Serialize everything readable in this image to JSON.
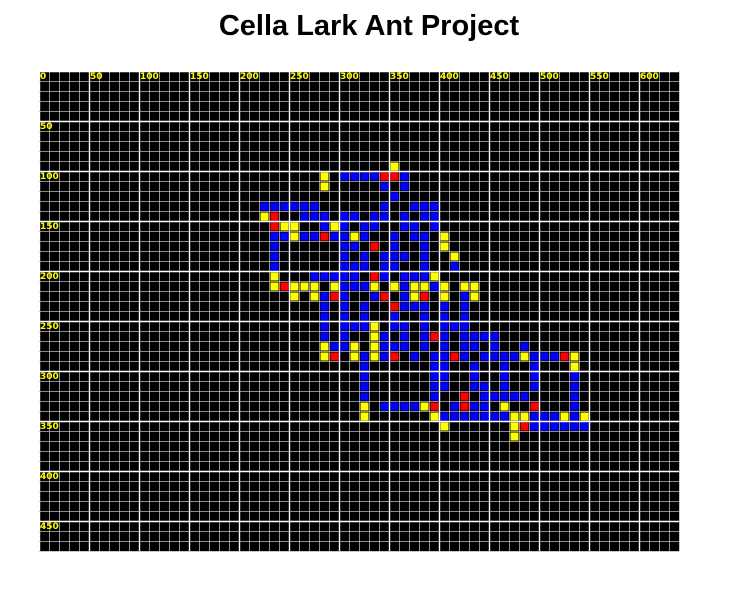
{
  "title": "Cella Lark Ant Project",
  "grid": {
    "x_range": [
      0,
      640
    ],
    "y_range": [
      0,
      480
    ],
    "cell_size": 10,
    "x_ticks": [
      "0",
      "50",
      "100",
      "150",
      "200",
      "250",
      "300",
      "350",
      "400",
      "450",
      "500",
      "550",
      "600"
    ],
    "y_ticks": [
      "0",
      "50",
      "100",
      "150",
      "200",
      "250",
      "300",
      "350",
      "400",
      "450"
    ]
  },
  "colors": {
    "background": "#000000",
    "grid_minor": "#b8b8b8",
    "grid_major": "#ffffff",
    "tick_label": "#ffff00",
    "blue": "#0000ff",
    "yellow": "#ffff00",
    "red": "#ff0000"
  },
  "cells": {
    "blue": [
      [
        30,
        10
      ],
      [
        31,
        10
      ],
      [
        32,
        10
      ],
      [
        33,
        10
      ],
      [
        36,
        10
      ],
      [
        34,
        11
      ],
      [
        36,
        11
      ],
      [
        35,
        12
      ],
      [
        22,
        13
      ],
      [
        23,
        13
      ],
      [
        24,
        13
      ],
      [
        25,
        13
      ],
      [
        26,
        13
      ],
      [
        27,
        13
      ],
      [
        34,
        13
      ],
      [
        37,
        13
      ],
      [
        38,
        13
      ],
      [
        39,
        13
      ],
      [
        26,
        14
      ],
      [
        27,
        14
      ],
      [
        28,
        14
      ],
      [
        30,
        14
      ],
      [
        31,
        14
      ],
      [
        33,
        14
      ],
      [
        34,
        14
      ],
      [
        36,
        14
      ],
      [
        38,
        14
      ],
      [
        39,
        14
      ],
      [
        23,
        15
      ],
      [
        24,
        15
      ],
      [
        28,
        15
      ],
      [
        30,
        15
      ],
      [
        32,
        15
      ],
      [
        33,
        15
      ],
      [
        36,
        15
      ],
      [
        37,
        15
      ],
      [
        39,
        15
      ],
      [
        23,
        16
      ],
      [
        24,
        16
      ],
      [
        26,
        16
      ],
      [
        27,
        16
      ],
      [
        29,
        16
      ],
      [
        30,
        16
      ],
      [
        32,
        16
      ],
      [
        35,
        16
      ],
      [
        37,
        16
      ],
      [
        38,
        16
      ],
      [
        23,
        17
      ],
      [
        30,
        17
      ],
      [
        31,
        17
      ],
      [
        33,
        17
      ],
      [
        35,
        17
      ],
      [
        38,
        17
      ],
      [
        23,
        18
      ],
      [
        30,
        18
      ],
      [
        32,
        18
      ],
      [
        34,
        18
      ],
      [
        35,
        18
      ],
      [
        36,
        18
      ],
      [
        38,
        18
      ],
      [
        23,
        19
      ],
      [
        30,
        19
      ],
      [
        31,
        19
      ],
      [
        32,
        19
      ],
      [
        34,
        19
      ],
      [
        35,
        19
      ],
      [
        38,
        19
      ],
      [
        41,
        19
      ],
      [
        27,
        20
      ],
      [
        28,
        20
      ],
      [
        29,
        20
      ],
      [
        30,
        20
      ],
      [
        31,
        20
      ],
      [
        33,
        20
      ],
      [
        34,
        20
      ],
      [
        36,
        20
      ],
      [
        37,
        20
      ],
      [
        38,
        20
      ],
      [
        30,
        21
      ],
      [
        31,
        21
      ],
      [
        32,
        21
      ],
      [
        36,
        21
      ],
      [
        39,
        21
      ],
      [
        28,
        22
      ],
      [
        30,
        22
      ],
      [
        33,
        22
      ],
      [
        34,
        22
      ],
      [
        36,
        22
      ],
      [
        38,
        22
      ],
      [
        42,
        22
      ],
      [
        28,
        23
      ],
      [
        30,
        23
      ],
      [
        32,
        23
      ],
      [
        35,
        23
      ],
      [
        36,
        23
      ],
      [
        37,
        23
      ],
      [
        38,
        23
      ],
      [
        40,
        23
      ],
      [
        42,
        23
      ],
      [
        28,
        24
      ],
      [
        30,
        24
      ],
      [
        32,
        24
      ],
      [
        35,
        24
      ],
      [
        38,
        24
      ],
      [
        40,
        24
      ],
      [
        42,
        24
      ],
      [
        28,
        25
      ],
      [
        30,
        25
      ],
      [
        31,
        25
      ],
      [
        32,
        25
      ],
      [
        33,
        25
      ],
      [
        35,
        25
      ],
      [
        36,
        25
      ],
      [
        38,
        25
      ],
      [
        40,
        25
      ],
      [
        41,
        25
      ],
      [
        42,
        25
      ],
      [
        28,
        26
      ],
      [
        30,
        26
      ],
      [
        34,
        26
      ],
      [
        36,
        26
      ],
      [
        38,
        26
      ],
      [
        40,
        26
      ],
      [
        42,
        26
      ],
      [
        43,
        26
      ],
      [
        44,
        26
      ],
      [
        45,
        26
      ],
      [
        29,
        27
      ],
      [
        30,
        27
      ],
      [
        34,
        27
      ],
      [
        35,
        27
      ],
      [
        36,
        27
      ],
      [
        38,
        27
      ],
      [
        40,
        27
      ],
      [
        42,
        27
      ],
      [
        43,
        27
      ],
      [
        45,
        27
      ],
      [
        48,
        27
      ],
      [
        32,
        28
      ],
      [
        34,
        28
      ],
      [
        37,
        28
      ],
      [
        39,
        28
      ],
      [
        40,
        28
      ],
      [
        42,
        28
      ],
      [
        44,
        28
      ],
      [
        45,
        28
      ],
      [
        46,
        28
      ],
      [
        47,
        28
      ],
      [
        48,
        28
      ],
      [
        49,
        28
      ],
      [
        50,
        28
      ],
      [
        51,
        28
      ],
      [
        32,
        29
      ],
      [
        39,
        29
      ],
      [
        40,
        29
      ],
      [
        43,
        29
      ],
      [
        46,
        29
      ],
      [
        49,
        29
      ],
      [
        53,
        29
      ],
      [
        32,
        30
      ],
      [
        39,
        30
      ],
      [
        40,
        30
      ],
      [
        43,
        30
      ],
      [
        46,
        30
      ],
      [
        49,
        30
      ],
      [
        53,
        30
      ],
      [
        32,
        31
      ],
      [
        39,
        31
      ],
      [
        40,
        31
      ],
      [
        43,
        31
      ],
      [
        44,
        31
      ],
      [
        46,
        31
      ],
      [
        49,
        31
      ],
      [
        53,
        31
      ],
      [
        32,
        32
      ],
      [
        39,
        32
      ],
      [
        44,
        32
      ],
      [
        45,
        32
      ],
      [
        46,
        32
      ],
      [
        47,
        32
      ],
      [
        48,
        32
      ],
      [
        53,
        32
      ],
      [
        34,
        33
      ],
      [
        35,
        33
      ],
      [
        36,
        33
      ],
      [
        37,
        33
      ],
      [
        39,
        33
      ],
      [
        41,
        33
      ],
      [
        43,
        33
      ],
      [
        44,
        33
      ],
      [
        46,
        33
      ],
      [
        53,
        33
      ],
      [
        40,
        34
      ],
      [
        41,
        34
      ],
      [
        42,
        34
      ],
      [
        43,
        34
      ],
      [
        44,
        34
      ],
      [
        45,
        34
      ],
      [
        46,
        34
      ],
      [
        49,
        34
      ],
      [
        50,
        34
      ],
      [
        51,
        34
      ],
      [
        52,
        34
      ],
      [
        53,
        34
      ],
      [
        49,
        35
      ],
      [
        50,
        35
      ],
      [
        51,
        35
      ],
      [
        52,
        35
      ],
      [
        53,
        35
      ],
      [
        54,
        35
      ]
    ],
    "yellow": [
      [
        28,
        10
      ],
      [
        28,
        11
      ],
      [
        35,
        9
      ],
      [
        22,
        14
      ],
      [
        24,
        15
      ],
      [
        25,
        15
      ],
      [
        29,
        15
      ],
      [
        25,
        16
      ],
      [
        28,
        16
      ],
      [
        31,
        16
      ],
      [
        40,
        16
      ],
      [
        40,
        17
      ],
      [
        41,
        18
      ],
      [
        23,
        20
      ],
      [
        39,
        20
      ],
      [
        23,
        21
      ],
      [
        25,
        21
      ],
      [
        26,
        21
      ],
      [
        27,
        21
      ],
      [
        29,
        21
      ],
      [
        33,
        21
      ],
      [
        35,
        21
      ],
      [
        37,
        21
      ],
      [
        38,
        21
      ],
      [
        40,
        21
      ],
      [
        42,
        21
      ],
      [
        43,
        21
      ],
      [
        25,
        22
      ],
      [
        27,
        22
      ],
      [
        29,
        22
      ],
      [
        37,
        22
      ],
      [
        40,
        22
      ],
      [
        43,
        22
      ],
      [
        33,
        25
      ],
      [
        33,
        26
      ],
      [
        28,
        27
      ],
      [
        31,
        27
      ],
      [
        33,
        27
      ],
      [
        28,
        28
      ],
      [
        31,
        28
      ],
      [
        33,
        28
      ],
      [
        48,
        28
      ],
      [
        53,
        28
      ],
      [
        53,
        29
      ],
      [
        32,
        33
      ],
      [
        38,
        33
      ],
      [
        46,
        33
      ],
      [
        32,
        34
      ],
      [
        39,
        34
      ],
      [
        47,
        34
      ],
      [
        48,
        34
      ],
      [
        52,
        34
      ],
      [
        54,
        34
      ],
      [
        40,
        35
      ],
      [
        47,
        35
      ],
      [
        47,
        36
      ]
    ],
    "red": [
      [
        34,
        10
      ],
      [
        35,
        10
      ],
      [
        23,
        14
      ],
      [
        23,
        15
      ],
      [
        28,
        16
      ],
      [
        33,
        17
      ],
      [
        24,
        21
      ],
      [
        33,
        20
      ],
      [
        29,
        22
      ],
      [
        34,
        22
      ],
      [
        38,
        22
      ],
      [
        35,
        23
      ],
      [
        39,
        26
      ],
      [
        29,
        28
      ],
      [
        35,
        28
      ],
      [
        41,
        28
      ],
      [
        52,
        28
      ],
      [
        39,
        33
      ],
      [
        42,
        33
      ],
      [
        49,
        33
      ],
      [
        42,
        32
      ],
      [
        48,
        35
      ]
    ]
  }
}
